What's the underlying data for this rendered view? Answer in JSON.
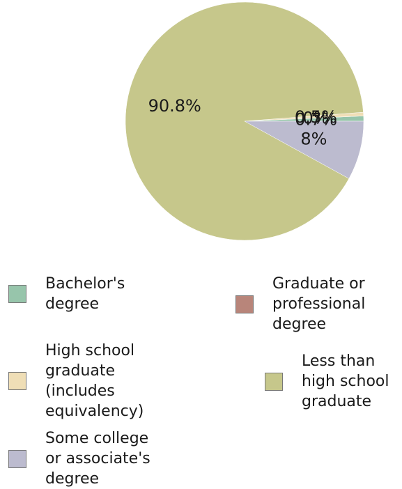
{
  "chart_data": {
    "type": "pie",
    "slices": [
      {
        "label": "Bachelor's degree",
        "legend_text": "Bachelor's\ndegree",
        "value": 0.7,
        "value_label": "0.7%",
        "color": "#97c5ab"
      },
      {
        "label": "Graduate or professional degree",
        "legend_text": "Graduate or\nprofessional\ndegree",
        "value": 0.0,
        "value_label": "0%",
        "color": "#b8857a"
      },
      {
        "label": "High school graduate (includes equivalency)",
        "legend_text": "High school\ngraduate\n(includes\nequivalency)",
        "value": 0.5,
        "value_label": "0.5%",
        "color": "#efdeb6"
      },
      {
        "label": "Less than high school graduate",
        "legend_text": "Less than\nhigh school\ngraduate",
        "value": 90.8,
        "value_label": "90.8%",
        "color": "#c6c78b"
      },
      {
        "label": "Some college or associate's degree",
        "legend_text": "Some college\nor associate's\ndegree",
        "value": 8.0,
        "value_label": "8%",
        "color": "#bcbbcf"
      }
    ]
  }
}
